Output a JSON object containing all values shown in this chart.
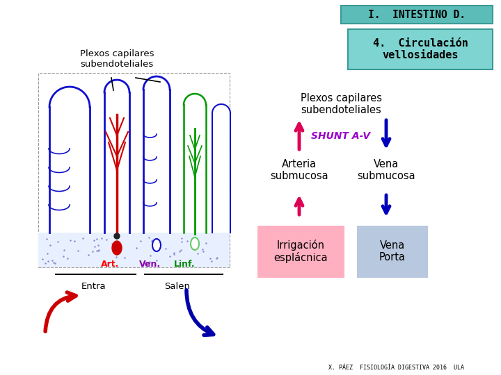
{
  "bg_color": "#ffffff",
  "title_box_text": "I.  INTESTINO D.",
  "title_box_bg": "#5bbcb8",
  "title_box_border": "#3a9a96",
  "subtitle_box_text": "4.  Circulación\nvellosidades",
  "subtitle_box_bg": "#7dd4d0",
  "subtitle_box_border": "#3a9a96",
  "top_label": "Plexos capilares\nsubendoteliales",
  "shunt_label": "SHUNT A-V",
  "shunt_color": "#9900cc",
  "left_mid_label": "Arteria\nsubmucosa",
  "right_mid_label": "Vena\nsubmucosa",
  "left_box_text": "Irrigación\nesplácnica",
  "left_box_bg": "#ffb0c0",
  "right_box_text": "Vena\nPorta",
  "right_box_bg": "#b8c8de",
  "arrow_up_color": "#dd0055",
  "arrow_down_color": "#0000bb",
  "left_label_upper": "Plexos capilares\nsubendoteliales",
  "footnote": "X. PÁEZ  FISIOLOGÍA DIGESTIVA 2016  ULA",
  "art_label": "Art.",
  "ven_label": "Ven.",
  "linf_label": "Linf.",
  "entra_label": "Entra",
  "salen_label": "Salen",
  "villi_blue": "#1010cc",
  "villi_green": "#009900",
  "villi_red": "#cc0000",
  "arrow_red_large": "#cc0000",
  "arrow_blue_large": "#0000aa"
}
